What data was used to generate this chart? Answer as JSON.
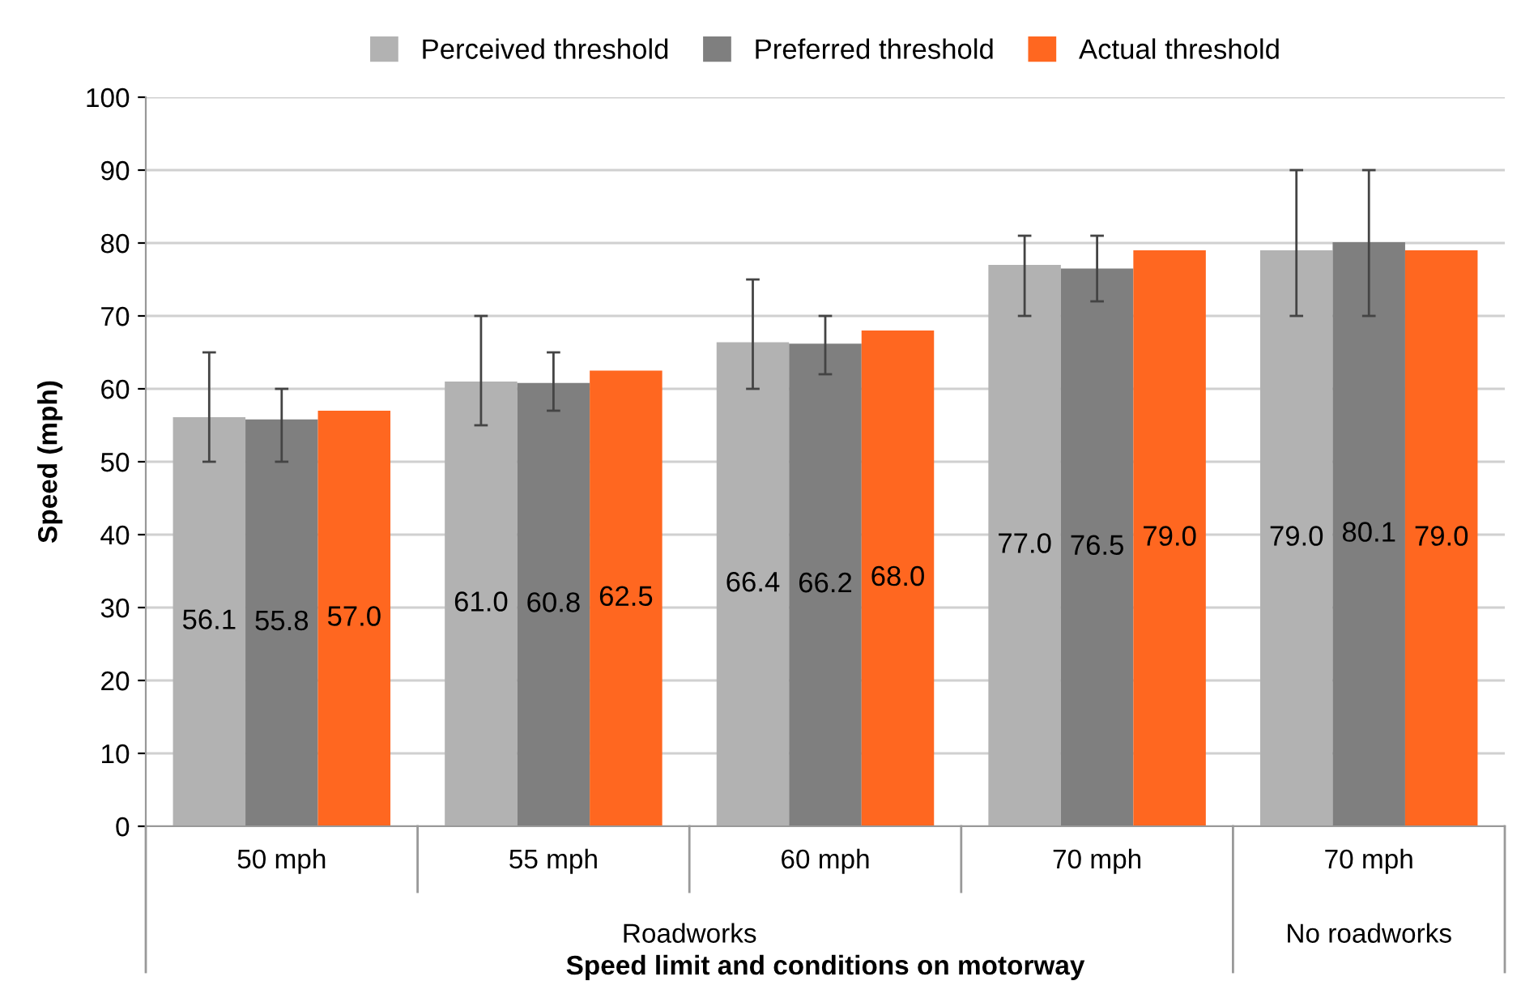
{
  "chart_data": {
    "type": "bar",
    "xlabel": "Speed limit and conditions on motorway",
    "ylabel": "Speed (mph)",
    "categories": [
      "50 mph",
      "55 mph",
      "60 mph",
      "70 mph",
      "70 mph"
    ],
    "series": [
      {
        "name": "Perceived threshold",
        "color": "#b2b2b2",
        "values": [
          56.1,
          61.0,
          66.4,
          77.0,
          79.0
        ],
        "value_labels": [
          "56.1",
          "61.0",
          "66.4",
          "77.0",
          "79.0"
        ],
        "errors": [
          [
            50,
            65
          ],
          [
            55,
            70
          ],
          [
            60,
            75
          ],
          [
            70,
            81
          ],
          [
            70,
            90
          ]
        ]
      },
      {
        "name": "Preferred threshold",
        "color": "#7f7f7f",
        "values": [
          55.8,
          60.8,
          66.2,
          76.5,
          80.1
        ],
        "value_labels": [
          "55.8",
          "60.8",
          "66.2",
          "76.5",
          "80.1"
        ],
        "errors": [
          [
            50,
            60
          ],
          [
            57,
            65
          ],
          [
            62,
            70
          ],
          [
            72,
            81
          ],
          [
            70,
            90
          ]
        ]
      },
      {
        "name": "Actual threshold",
        "color": "#ff6720",
        "values": [
          57.0,
          62.5,
          68.0,
          79.0,
          79.0
        ],
        "value_labels": [
          "57.0",
          "62.5",
          "68.0",
          "79.0",
          "79.0"
        ]
      }
    ],
    "annotations": [
      "Roadworks",
      "No roadworks"
    ],
    "ylim": [
      0,
      100
    ],
    "yticks": [
      0,
      10,
      20,
      30,
      40,
      50,
      60,
      70,
      80,
      90,
      100
    ],
    "grid": "y",
    "legend": "top"
  }
}
